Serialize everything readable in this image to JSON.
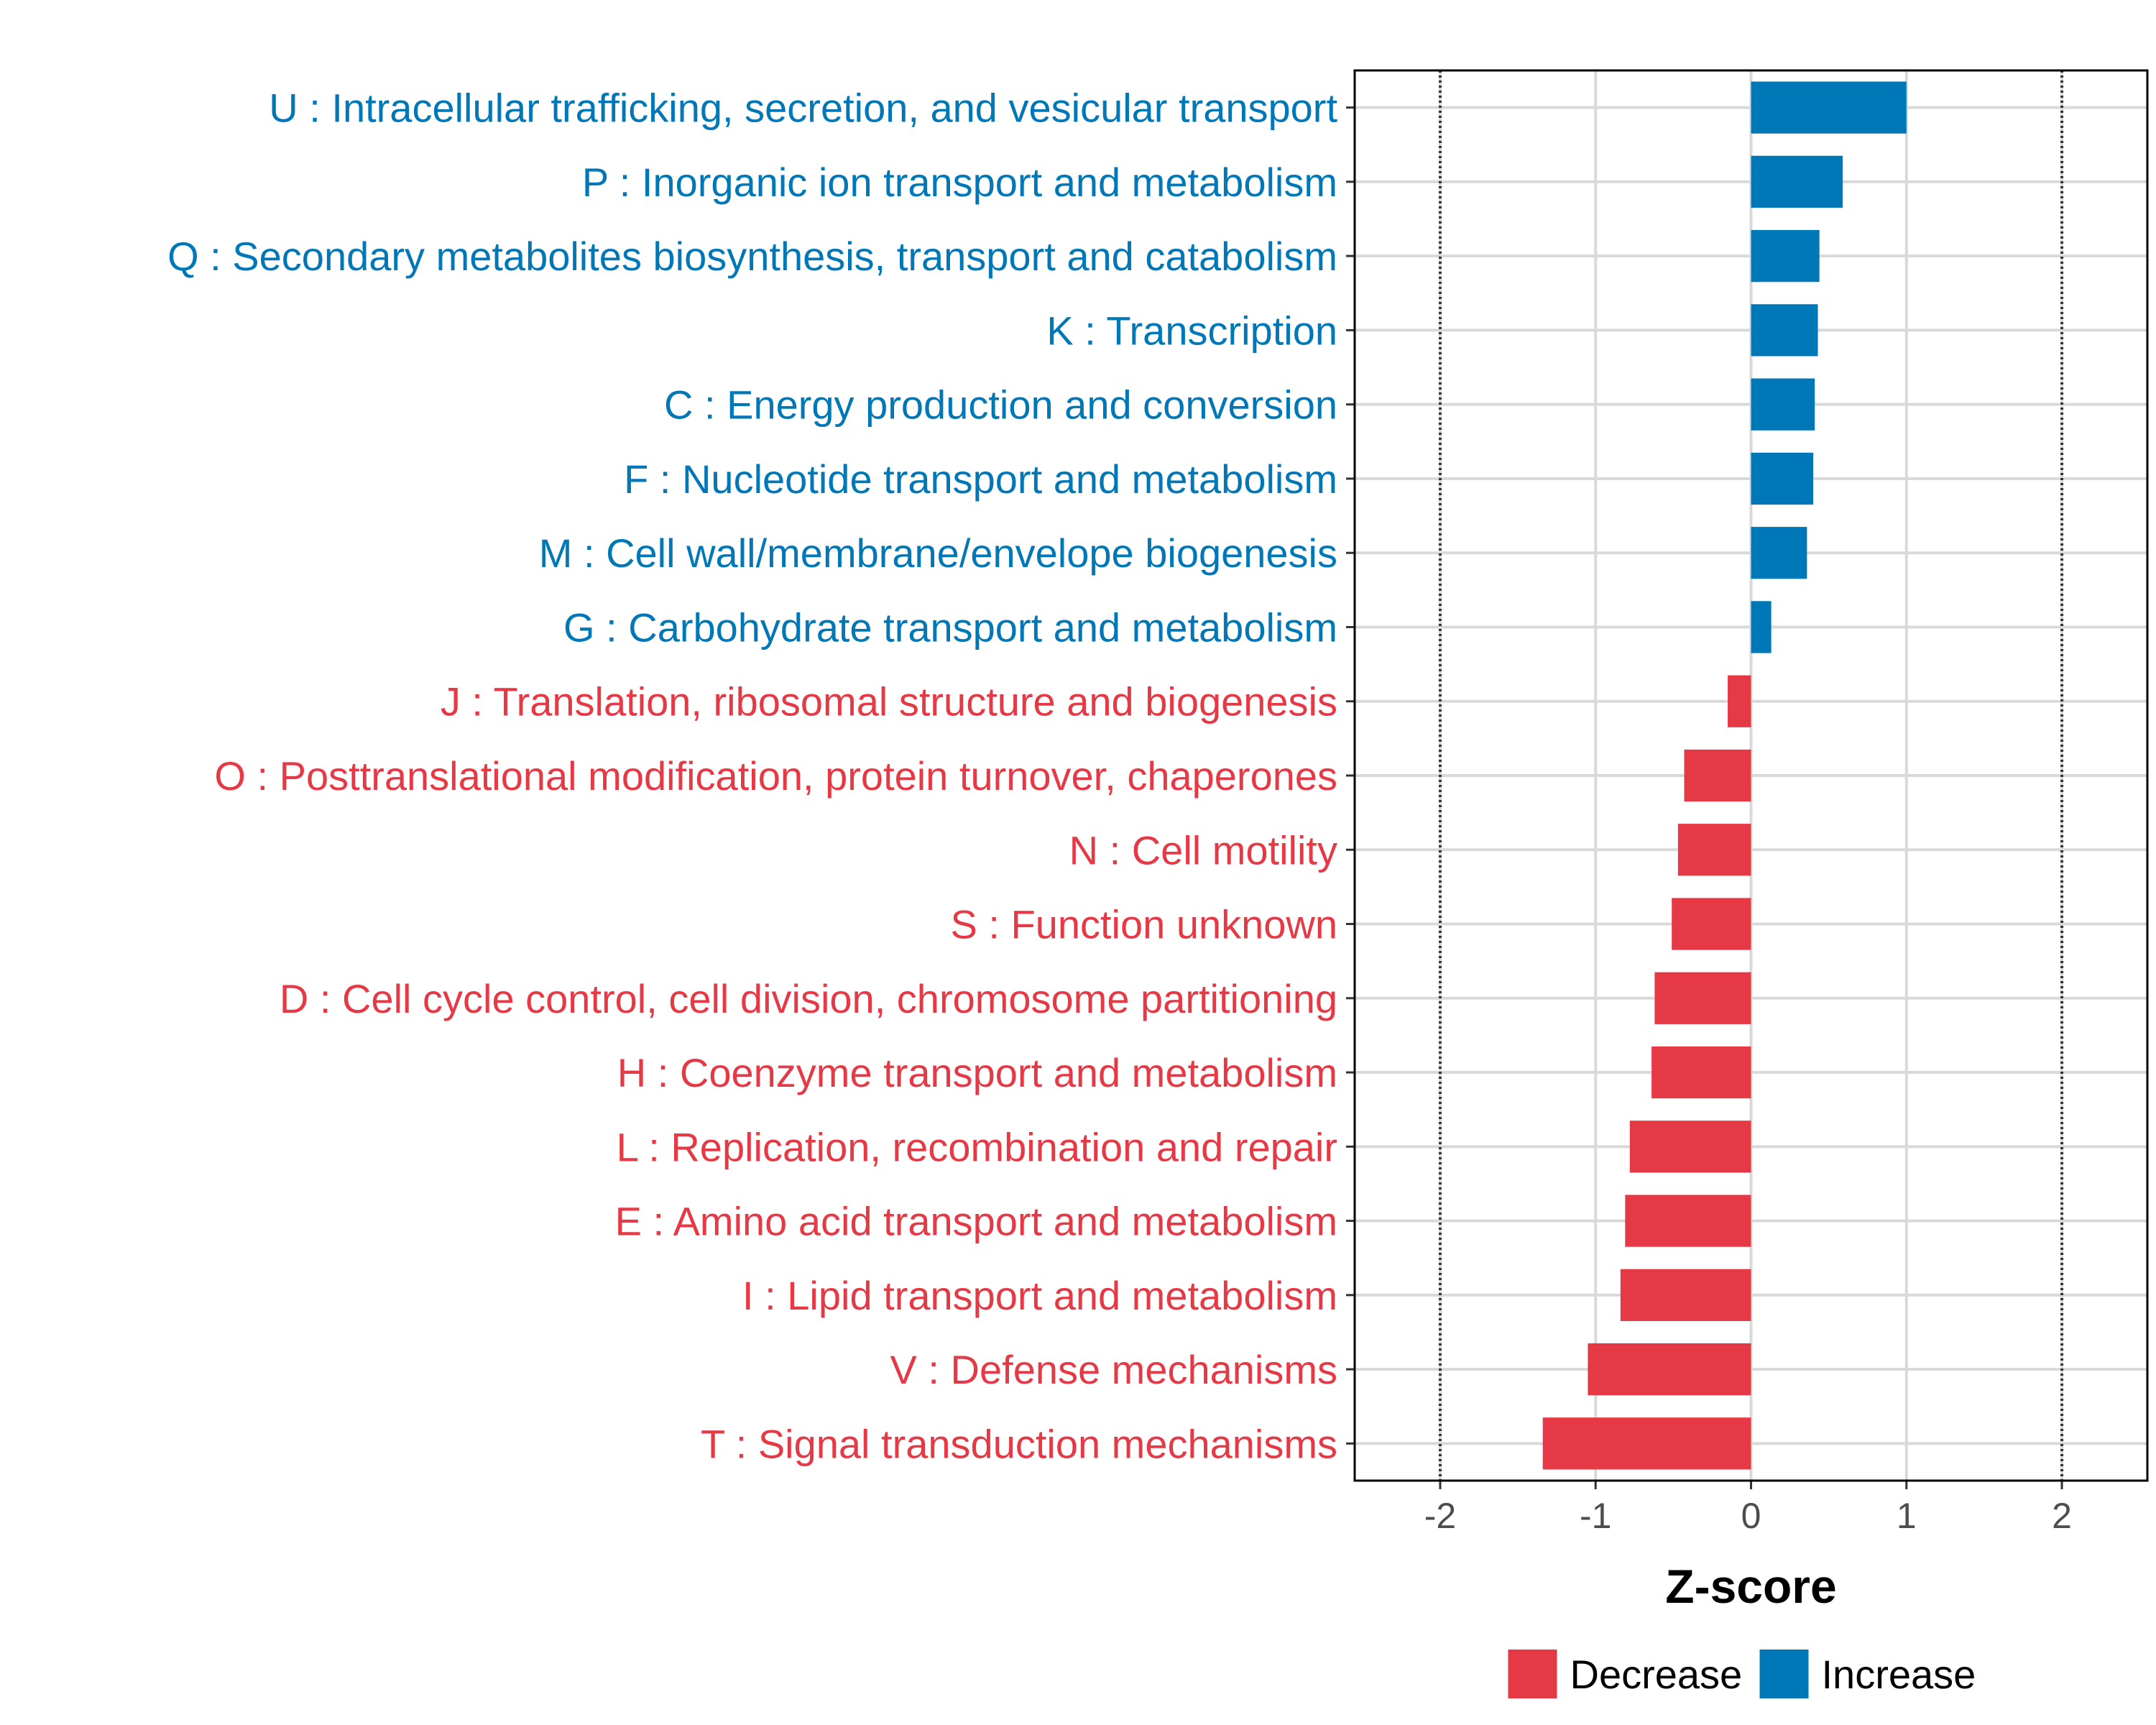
{
  "chart_data": {
    "type": "bar",
    "orientation": "horizontal",
    "xlabel": "Z-score",
    "xlim": [
      -2.55,
      2.55
    ],
    "xticks": [
      -2,
      -1,
      0,
      1,
      2
    ],
    "xtick_labels": [
      "-2",
      "-1",
      "0",
      "1",
      "2"
    ],
    "reference_lines": [
      -2,
      2
    ],
    "grid": true,
    "categories": [
      "U : Intracellular trafficking, secretion, and vesicular transport",
      "P : Inorganic ion transport and metabolism",
      "Q : Secondary metabolites biosynthesis, transport and catabolism",
      "K : Transcription",
      "C : Energy production and conversion",
      "F : Nucleotide transport and metabolism",
      "M : Cell wall/membrane/envelope biogenesis",
      "G : Carbohydrate transport and metabolism",
      "J : Translation, ribosomal structure and biogenesis",
      "O : Posttranslational modification, protein turnover, chaperones",
      "N : Cell motility",
      "S : Function unknown",
      "D : Cell cycle control, cell division, chromosome partitioning",
      "H : Coenzyme transport and metabolism",
      "L : Replication, recombination and repair",
      "E : Amino acid transport and metabolism",
      "I : Lipid transport and metabolism",
      "V : Defense mechanisms",
      "T : Signal transduction mechanisms"
    ],
    "values": [
      1.0,
      0.59,
      0.44,
      0.43,
      0.41,
      0.4,
      0.36,
      0.13,
      -0.15,
      -0.43,
      -0.47,
      -0.51,
      -0.62,
      -0.64,
      -0.78,
      -0.81,
      -0.84,
      -1.05,
      -1.34
    ],
    "groups": [
      "Increase",
      "Increase",
      "Increase",
      "Increase",
      "Increase",
      "Increase",
      "Increase",
      "Increase",
      "Decrease",
      "Decrease",
      "Decrease",
      "Decrease",
      "Decrease",
      "Decrease",
      "Decrease",
      "Decrease",
      "Decrease",
      "Decrease",
      "Decrease"
    ],
    "legend": {
      "position": "bottom",
      "entries": [
        {
          "label": "Decrease",
          "color": "#E63946"
        },
        {
          "label": "Increase",
          "color": "#0077B6"
        }
      ]
    }
  }
}
